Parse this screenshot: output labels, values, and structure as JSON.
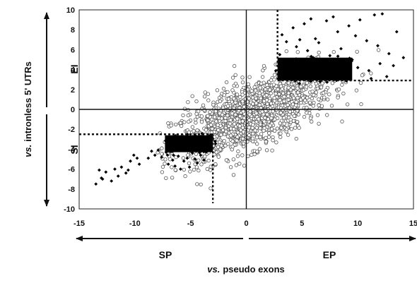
{
  "chart_data": {
    "type": "scatter",
    "title": "",
    "xlabel_prefix": "vs.",
    "xlabel_text": "pseudo exons",
    "ylabel_prefix": "vs.",
    "ylabel_text": "intronless 5' UTRs",
    "xlim": [
      -15,
      15
    ],
    "ylim": [
      -10,
      10
    ],
    "x_ticks": [
      -15,
      -10,
      -5,
      0,
      5,
      10,
      15
    ],
    "y_ticks": [
      -10,
      -8,
      -6,
      -4,
      -2,
      0,
      2,
      4,
      6,
      8,
      10
    ],
    "grid": false,
    "legend": "none",
    "thresholds": {
      "x_low": -3,
      "x_high": 2.8,
      "y_low": -2.5,
      "y_high": 2.9
    },
    "quadrant_labels": {
      "EI": "EI",
      "SI": "SI",
      "SP": "SP",
      "EP": "EP"
    },
    "series": [
      {
        "marker": "open-circle",
        "cloud": {
          "x_center": 0.5,
          "y_center": -0.5,
          "x_range": [
            -8,
            14
          ],
          "y_range": [
            -8,
            6
          ]
        }
      },
      {
        "marker": "filled-diamond",
        "points": [
          [
            3.5,
            3.2
          ],
          [
            4,
            4.5
          ],
          [
            5,
            3.8
          ],
          [
            6,
            5.2
          ],
          [
            7,
            4.1
          ],
          [
            8,
            3.6
          ],
          [
            9,
            4.8
          ],
          [
            3,
            5.5
          ],
          [
            4.5,
            6.3
          ],
          [
            5.5,
            5.9
          ],
          [
            6.5,
            6.7
          ],
          [
            7.5,
            5.4
          ],
          [
            8.5,
            6.1
          ],
          [
            9.5,
            5.0
          ],
          [
            10,
            4.2
          ],
          [
            11,
            3.9
          ],
          [
            12,
            4.6
          ],
          [
            3.2,
            7.5
          ],
          [
            4.2,
            8.2
          ],
          [
            5.2,
            8.6
          ],
          [
            6.2,
            7.1
          ],
          [
            7.2,
            8.9
          ],
          [
            8.2,
            7.8
          ],
          [
            9.2,
            8.4
          ],
          [
            10.2,
            9.0
          ],
          [
            11.5,
            9.5
          ],
          [
            12.2,
            9.6
          ],
          [
            13.5,
            7.8
          ],
          [
            10.8,
            6.9
          ],
          [
            11.8,
            6.4
          ],
          [
            12.8,
            5.6
          ],
          [
            13.2,
            4.4
          ],
          [
            12.6,
            3.3
          ],
          [
            11.2,
            3.1
          ],
          [
            9.8,
            7.4
          ],
          [
            7.8,
            9.3
          ],
          [
            5.8,
            9.1
          ],
          [
            4.8,
            7.0
          ],
          [
            3.6,
            6.8
          ],
          [
            14.1,
            5.2
          ],
          [
            -13.5,
            -7.5
          ],
          [
            -13,
            -6.9
          ],
          [
            -12.6,
            -6.3
          ],
          [
            -12.1,
            -7.2
          ],
          [
            -11.8,
            -6.0
          ],
          [
            -11.2,
            -5.8
          ],
          [
            -10.8,
            -6.4
          ],
          [
            -10.4,
            -5.2
          ],
          [
            -10.1,
            -4.6
          ],
          [
            -9.6,
            -5.5
          ],
          [
            -13.2,
            -6.1
          ],
          [
            -12.9,
            -7.0
          ],
          [
            -11.5,
            -6.7
          ],
          [
            -10.6,
            -6.1
          ],
          [
            -9.8,
            -4.9
          ],
          [
            -8.8,
            -4.9
          ],
          [
            -8.2,
            -4.6
          ],
          [
            -7.6,
            -4.8
          ],
          [
            -7.2,
            -4.3
          ],
          [
            -6.6,
            -5.1
          ],
          [
            -6.1,
            -4.7
          ],
          [
            -5.6,
            -5.2
          ],
          [
            -5.1,
            -5.8
          ],
          [
            -4.6,
            -5.0
          ],
          [
            -4.1,
            -4.6
          ],
          [
            -3.6,
            -4.3
          ],
          [
            -3.2,
            -3.9
          ],
          [
            -8.5,
            -4.2
          ],
          [
            -7.9,
            -4.1
          ],
          [
            -7.0,
            -5.5
          ],
          [
            -6.4,
            -5.7
          ],
          [
            -5.3,
            -4.9
          ],
          [
            -4.4,
            -5.4
          ],
          [
            -3.8,
            -5.1
          ],
          [
            -5.9,
            -6.0
          ]
        ],
        "dense_regions": [
          {
            "x": [
              2.8,
              9.5
            ],
            "y": [
              2.9,
              5.2
            ]
          },
          {
            "x": [
              -7.3,
              -3
            ],
            "y": [
              -4.3,
              -2.6
            ]
          }
        ]
      }
    ]
  }
}
